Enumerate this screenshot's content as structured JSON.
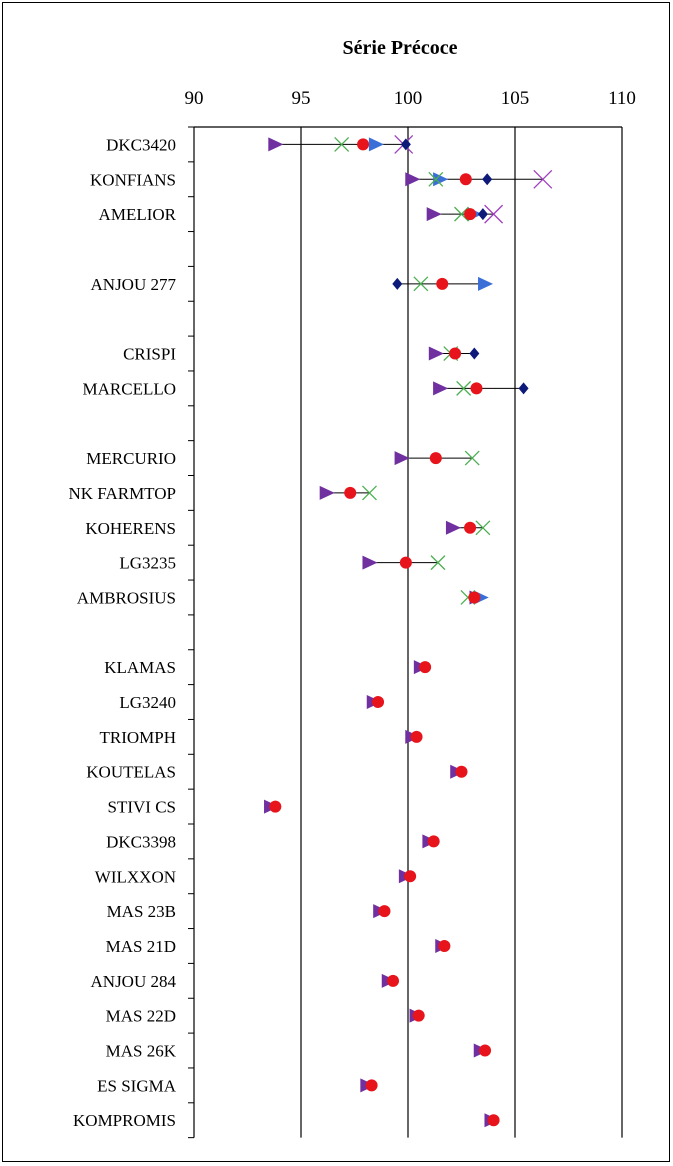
{
  "chart_data": {
    "type": "scatter",
    "title": "Série Précoce",
    "xlabel": "",
    "ylabel": "",
    "xlim": [
      90,
      110
    ],
    "xticks": [
      90,
      95,
      100,
      105,
      110
    ],
    "grid": "vertical",
    "legend": "none",
    "categories": [
      "DKC3420",
      "KONFIANS",
      "AMELIOR",
      "",
      "ANJOU 277",
      "",
      "CRISPI",
      "MARCELLO",
      "",
      "MERCURIO",
      "NK FARMTOP",
      "KOHERENS",
      "LG3235",
      "AMBROSIUS",
      "",
      "KLAMAS",
      "LG3240",
      "TRIOMPH",
      "KOUTELAS",
      "STIVI CS",
      "DKC3398",
      "WILXXON",
      "MAS 23B",
      "MAS 21D",
      "ANJOU 284",
      "MAS 22D",
      "MAS 26K",
      "ES SIGMA",
      "KOMPROMIS"
    ],
    "series": [
      {
        "marker": "triangle-right",
        "color": "#7030a0",
        "values": [
          93.8,
          100.2,
          101.2,
          null,
          null,
          null,
          101.3,
          101.5,
          null,
          99.7,
          96.2,
          102.1,
          98.2,
          103.2,
          null,
          100.6,
          98.4,
          100.2,
          102.3,
          93.6,
          101.0,
          99.9,
          98.7,
          101.6,
          99.1,
          100.4,
          103.4,
          98.1,
          103.9
        ]
      },
      {
        "marker": "triangle-right-blue",
        "color": "#3a6fd8",
        "values": [
          98.5,
          101.5,
          103.1,
          null,
          103.6,
          null,
          null,
          null,
          null,
          null,
          null,
          null,
          null,
          103.4,
          null,
          null,
          null,
          null,
          null,
          null,
          null,
          null,
          null,
          null,
          null,
          null,
          null,
          null,
          null
        ]
      },
      {
        "marker": "x",
        "color": "#4caf50",
        "values": [
          96.9,
          101.3,
          102.5,
          null,
          100.6,
          null,
          102.0,
          102.6,
          null,
          103.0,
          98.2,
          103.5,
          101.4,
          102.8,
          null,
          null,
          null,
          null,
          null,
          null,
          null,
          null,
          null,
          null,
          null,
          null,
          null,
          null,
          null
        ]
      },
      {
        "marker": "x-large",
        "color": "#a040c0",
        "values": [
          99.8,
          106.3,
          104.0,
          null,
          null,
          null,
          null,
          null,
          null,
          null,
          null,
          null,
          null,
          null,
          null,
          null,
          null,
          null,
          null,
          null,
          null,
          null,
          null,
          null,
          null,
          null,
          null,
          null,
          null
        ]
      },
      {
        "marker": "circle",
        "color": "#e8141b",
        "values": [
          97.9,
          102.7,
          102.9,
          null,
          101.6,
          null,
          102.2,
          103.2,
          null,
          101.3,
          97.3,
          102.9,
          99.9,
          103.1,
          null,
          100.8,
          98.6,
          100.4,
          102.5,
          93.8,
          101.2,
          100.1,
          98.9,
          101.7,
          99.3,
          100.5,
          103.6,
          98.3,
          104.0
        ]
      },
      {
        "marker": "diamond",
        "color": "#0d1a7a",
        "values": [
          99.9,
          103.7,
          103.5,
          null,
          99.5,
          null,
          103.1,
          105.4,
          null,
          null,
          null,
          null,
          null,
          null,
          null,
          null,
          null,
          null,
          null,
          null,
          null,
          null,
          null,
          null,
          null,
          null,
          null,
          null,
          null
        ]
      }
    ]
  }
}
